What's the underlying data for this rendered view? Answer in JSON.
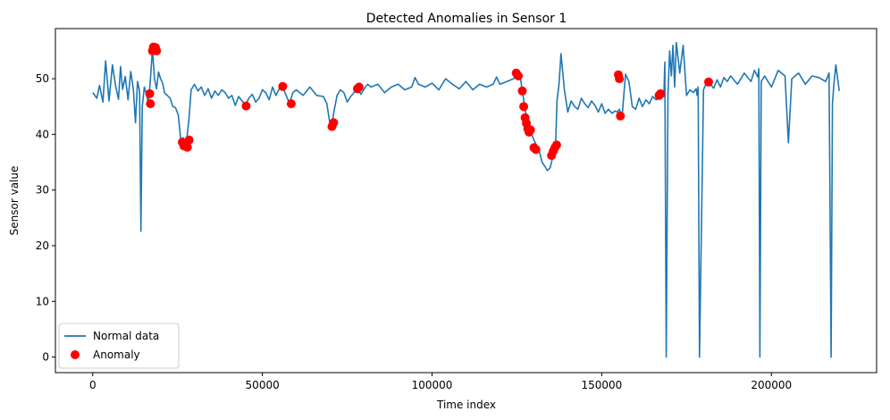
{
  "chart_data": {
    "type": "line",
    "title": "Detected Anomalies in Sensor 1",
    "xlabel": "Time index",
    "ylabel": "Sensor value",
    "xlim": [
      -11000,
      231000
    ],
    "ylim": [
      -2.8,
      59
    ],
    "xticks": [
      0,
      50000,
      100000,
      150000,
      200000
    ],
    "yticks": [
      0,
      10,
      20,
      30,
      40,
      50
    ],
    "grid": false,
    "legend": {
      "placement": "lower-left",
      "entries": [
        {
          "label": "Normal data",
          "kind": "line",
          "color": "#1f77b4"
        },
        {
          "label": "Anomaly",
          "kind": "marker",
          "color": "#ff0000"
        }
      ]
    },
    "series": [
      {
        "name": "Normal data",
        "kind": "line",
        "color": "#1f77b4",
        "x": [
          0,
          1200,
          2000,
          3000,
          3800,
          4800,
          5800,
          6800,
          7600,
          8200,
          8800,
          9600,
          10400,
          11200,
          12000,
          12600,
          13200,
          13800,
          14200,
          14600,
          15200,
          15800,
          16400,
          17000,
          17600,
          18200,
          18800,
          19400,
          20000,
          20600,
          21200,
          22000,
          22800,
          23600,
          24400,
          25200,
          26000,
          26600,
          27200,
          27800,
          28400,
          29000,
          30000,
          31000,
          32000,
          33000,
          34000,
          35000,
          36000,
          37000,
          38000,
          39000,
          40000,
          41000,
          42000,
          43000,
          44000,
          45000,
          46000,
          47000,
          48000,
          49000,
          50000,
          51000,
          52000,
          53000,
          54000,
          55000,
          56000,
          57000,
          58000,
          59000,
          60000,
          62000,
          64000,
          66000,
          68000,
          69000,
          70000,
          70600,
          71200,
          72000,
          73000,
          74000,
          75000,
          76000,
          77000,
          78000,
          79000,
          80000,
          81000,
          82000,
          84000,
          86000,
          88000,
          90000,
          92000,
          94000,
          95000,
          96000,
          98000,
          100000,
          102000,
          104000,
          106000,
          108000,
          110000,
          112000,
          114000,
          116000,
          118000,
          119000,
          120000,
          122000,
          124000,
          125000,
          126000,
          126800,
          127600,
          128400,
          129200,
          130000,
          130800,
          131600,
          132400,
          133200,
          134000,
          134800,
          135600,
          136000,
          136400,
          136800,
          137400,
          138000,
          139000,
          140000,
          141000,
          142000,
          143000,
          144000,
          145000,
          146000,
          147000,
          148000,
          149000,
          150000,
          151000,
          152000,
          153000,
          154000,
          154600,
          155200,
          156000,
          157000,
          158000,
          159000,
          160000,
          161000,
          162000,
          163000,
          164000,
          165000,
          166000,
          167000,
          167600,
          168000,
          168300,
          168600,
          169000,
          169500,
          170000,
          170500,
          171000,
          171500,
          172000,
          173000,
          174000,
          175000,
          176000,
          177000,
          177800,
          178100,
          178400,
          178800,
          180000,
          181000,
          182000,
          183000,
          184000,
          185000,
          186000,
          187000,
          188000,
          190000,
          192000,
          194000,
          195000,
          196000,
          196300,
          196600,
          197000,
          198000,
          200000,
          202000,
          204000,
          205000,
          206000,
          208000,
          210000,
          212000,
          214000,
          216000,
          217000,
          217600,
          218000,
          218400,
          219000,
          220000
        ],
        "y": [
          47.5,
          46.5,
          48.8,
          45.8,
          53.2,
          46.0,
          52.5,
          48.5,
          46.3,
          52.2,
          48.1,
          50.4,
          46.2,
          51.3,
          48.0,
          42.1,
          49.5,
          47.8,
          22.6,
          45.0,
          48.5,
          47.2,
          45.6,
          49.8,
          55.3,
          50.0,
          48.2,
          51.2,
          50.0,
          49.2,
          47.4,
          47.0,
          46.5,
          45.0,
          44.8,
          43.5,
          38.7,
          39.4,
          38.6,
          39.5,
          43.0,
          48.0,
          49.0,
          47.8,
          48.5,
          47.0,
          48.2,
          46.5,
          47.8,
          47.0,
          48.0,
          47.5,
          46.5,
          47.0,
          45.2,
          46.8,
          46.0,
          45.3,
          46.5,
          47.2,
          45.8,
          46.5,
          48.0,
          47.5,
          46.2,
          48.5,
          47.0,
          48.2,
          48.5,
          47.0,
          45.6,
          47.5,
          48.0,
          47.0,
          48.5,
          47.0,
          46.8,
          45.5,
          41.5,
          42.3,
          44.5,
          47.0,
          48.0,
          47.5,
          45.8,
          46.8,
          47.5,
          48.3,
          47.2,
          48.2,
          49.0,
          48.5,
          49.0,
          47.5,
          48.5,
          49.0,
          48.0,
          48.5,
          50.2,
          49.0,
          48.5,
          49.2,
          48.0,
          50.0,
          49.0,
          48.2,
          49.5,
          48.0,
          49.0,
          48.5,
          49.0,
          50.3,
          49.0,
          49.5,
          50.0,
          51.0,
          50.2,
          47.0,
          44.0,
          40.8,
          40.2,
          39.0,
          38.0,
          37.0,
          35.0,
          34.3,
          33.5,
          34.0,
          36.0,
          37.5,
          38.0,
          46.0,
          49.0,
          54.5,
          48.0,
          44.0,
          46.0,
          45.0,
          44.5,
          46.5,
          45.5,
          44.8,
          46.0,
          45.2,
          44.0,
          45.5,
          43.8,
          44.5,
          43.8,
          44.2,
          44.0,
          44.5,
          43.2,
          50.8,
          49.5,
          45.0,
          44.5,
          46.5,
          45.0,
          46.2,
          45.5,
          46.8,
          46.2,
          46.5,
          47.0,
          47.2,
          46.8,
          53.0,
          0.0,
          47.0,
          55.0,
          50.5,
          56.0,
          48.5,
          56.5,
          51.0,
          56.0,
          47.0,
          48.0,
          47.5,
          48.2,
          47.0,
          48.5,
          0.0,
          48.0,
          49.5,
          49.0,
          48.3,
          49.8,
          48.5,
          50.2,
          49.5,
          50.5,
          49.0,
          51.0,
          49.5,
          51.5,
          50.3,
          51.8,
          0.0,
          49.5,
          50.5,
          48.5,
          51.5,
          50.5,
          38.5,
          50.0,
          51.0,
          49.0,
          50.5,
          50.2,
          49.5,
          51.0,
          0.0,
          45.5,
          49.0,
          52.5,
          47.8
        ]
      },
      {
        "name": "Anomaly",
        "kind": "scatter",
        "color": "#ff0000",
        "x": [
          16800,
          17000,
          17600,
          17900,
          18200,
          18500,
          18800,
          26400,
          26900,
          27400,
          27900,
          28400,
          45200,
          56000,
          58500,
          70500,
          71000,
          78000,
          78500,
          124800,
          125400,
          126600,
          127000,
          127400,
          127800,
          128200,
          128600,
          129000,
          130000,
          130600,
          135200,
          135700,
          136200,
          136700,
          154900,
          155200,
          155500,
          166900,
          167300,
          181500
        ],
        "y": [
          47.3,
          45.5,
          55.0,
          55.7,
          55.2,
          55.6,
          55.0,
          38.6,
          37.9,
          38.2,
          37.7,
          39.0,
          45.1,
          48.6,
          45.5,
          41.4,
          42.1,
          48.2,
          48.5,
          51.0,
          50.5,
          47.8,
          45.0,
          43.0,
          42.0,
          41.0,
          40.4,
          40.8,
          37.6,
          37.3,
          36.2,
          37.0,
          37.6,
          38.1,
          50.7,
          50.0,
          43.3,
          47.0,
          47.3,
          49.4
        ]
      }
    ]
  }
}
